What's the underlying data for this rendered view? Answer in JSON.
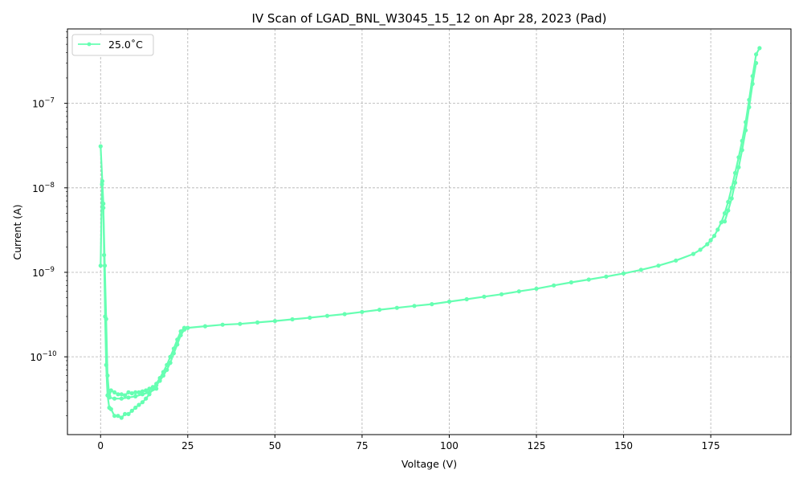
{
  "chart_data": {
    "type": "line",
    "title": "IV Scan of LGAD_BNL_W3045_15_12 on Apr 28, 2023 (Pad)",
    "xlabel": "Voltage (V)",
    "ylabel": "Current (A)",
    "xlim": [
      -9.5,
      198
    ],
    "ylim": [
      1.2e-11,
      7.6e-07
    ],
    "yscale": "log",
    "grid": true,
    "legend_position": "top-left",
    "x_ticks": [
      0,
      25,
      50,
      75,
      100,
      125,
      150,
      175
    ],
    "x_tick_labels": [
      "0",
      "25",
      "50",
      "75",
      "100",
      "125",
      "150",
      "175"
    ],
    "y_ticks": [
      1e-10,
      1e-09,
      1e-08,
      1e-07
    ],
    "y_tick_labels": [
      {
        "base": "10",
        "exp": "−10"
      },
      {
        "base": "10",
        "exp": "−9"
      },
      {
        "base": "10",
        "exp": "−8"
      },
      {
        "base": "10",
        "exp": "−7"
      }
    ],
    "series": [
      {
        "name": "25.0$^\\circ$C",
        "legend_label": "25.0˚C",
        "color": "#66ffb2",
        "segments": [
          {
            "name": "lower-sweep",
            "x": [
              0,
              0.5,
              0.8,
              1.0,
              1.3,
              1.6,
              2.0,
              2.5,
              3,
              4,
              5,
              6,
              7,
              8,
              9,
              10,
              11,
              12,
              13,
              14,
              15,
              16,
              17,
              18,
              19,
              20,
              21,
              22,
              23,
              24
            ],
            "y": [
              3.1e-08,
              1.2e-08,
              6.5e-09,
              1.6e-09,
              3e-10,
              8e-11,
              3.5e-11,
              2.5e-11,
              2.4e-11,
              2e-11,
              2e-11,
              1.9e-11,
              2.1e-11,
              2.1e-11,
              2.3e-11,
              2.5e-11,
              2.7e-11,
              2.9e-11,
              3.2e-11,
              3.6e-11,
              4.2e-11,
              4.8e-11,
              5.6e-11,
              6.6e-11,
              8e-11,
              1e-10,
              1.25e-10,
              1.6e-10,
              2e-10,
              2.2e-10
            ]
          },
          {
            "name": "upper-sweep",
            "x": [
              0,
              0.4,
              0.8,
              1.2,
              1.6,
              2,
              2.5,
              3,
              4,
              5,
              6,
              7,
              8,
              9,
              10,
              11,
              12,
              13,
              14,
              15,
              16,
              17,
              18,
              19,
              20,
              21,
              22,
              23,
              24,
              25
            ],
            "y": [
              1.2e-09,
              1.1e-08,
              5.8e-09,
              1.2e-09,
              2.8e-10,
              6e-11,
              3.4e-11,
              4e-11,
              3.8e-11,
              3.6e-11,
              3.6e-11,
              3.5e-11,
              3.8e-11,
              3.7e-11,
              3.8e-11,
              3.8e-11,
              3.9e-11,
              4e-11,
              4.2e-11,
              4.4e-11,
              4.6e-11,
              5.2e-11,
              6e-11,
              7e-11,
              8.5e-11,
              1.1e-10,
              1.4e-10,
              1.8e-10,
              2.1e-10,
              2.2e-10
            ]
          },
          {
            "name": "middle-sweep",
            "x": [
              2.5,
              4,
              6,
              8,
              10,
              12,
              14,
              16
            ],
            "y": [
              3.3e-11,
              3.2e-11,
              3.2e-11,
              3.3e-11,
              3.4e-11,
              3.6e-11,
              3.8e-11,
              4.2e-11
            ]
          },
          {
            "name": "main-curve",
            "x": [
              25,
              30,
              35,
              40,
              45,
              50,
              55,
              60,
              65,
              70,
              75,
              80,
              85,
              90,
              95,
              100,
              105,
              110,
              115,
              120,
              125,
              130,
              135,
              140,
              145,
              150,
              155,
              160,
              165,
              170,
              172,
              174,
              175,
              176,
              177,
              178,
              179,
              180,
              181,
              182,
              183,
              184,
              185,
              186,
              187,
              188,
              189
            ],
            "y": [
              2.2e-10,
              2.3e-10,
              2.4e-10,
              2.45e-10,
              2.55e-10,
              2.65e-10,
              2.78e-10,
              2.9e-10,
              3.05e-10,
              3.2e-10,
              3.4e-10,
              3.6e-10,
              3.8e-10,
              4e-10,
              4.2e-10,
              4.5e-10,
              4.8e-10,
              5.15e-10,
              5.5e-10,
              5.95e-10,
              6.4e-10,
              7e-10,
              7.6e-10,
              8.2e-10,
              8.9e-10,
              9.7e-10,
              1.07e-09,
              1.2e-09,
              1.38e-09,
              1.65e-09,
              1.85e-09,
              2.15e-09,
              2.4e-09,
              2.7e-09,
              3.2e-09,
              3.9e-09,
              5e-09,
              6.8e-09,
              1e-08,
              1.5e-08,
              2.3e-08,
              3.6e-08,
              6e-08,
              1.1e-07,
              2.1e-07,
              3.8e-07,
              4.5e-07
            ]
          },
          {
            "name": "breakdown-return",
            "x": [
              179,
              180,
              181,
              182,
              183,
              184,
              185,
              186,
              187,
              188
            ],
            "y": [
              4e-09,
              5.4e-09,
              7.5e-09,
              1.15e-08,
              1.75e-08,
              2.8e-08,
              4.8e-08,
              9e-08,
              1.7e-07,
              3e-07
            ]
          }
        ]
      }
    ]
  }
}
